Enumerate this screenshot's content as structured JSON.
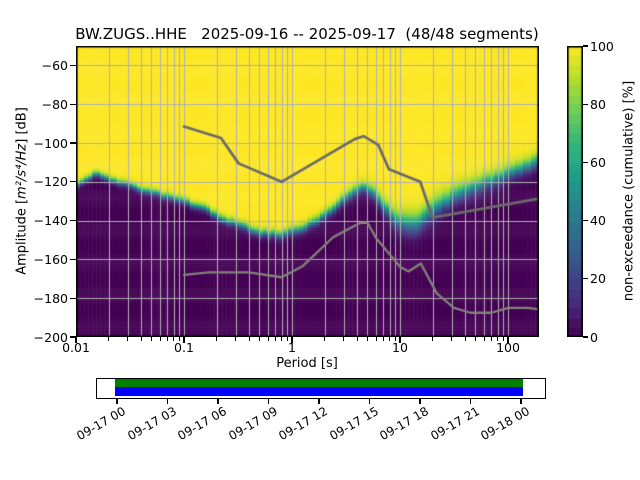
{
  "title": "BW.ZUGS..HHE   2025-09-16 -- 2025-09-17  (48/48 segments)",
  "axes": {
    "xlabel": "Period [s]",
    "ylabel_pre": "Amplitude [",
    "ylabel_math": "m²/s⁴/Hz",
    "ylabel_post": "] [dB]",
    "x_major_ticks": [
      {
        "value": 0.01,
        "label": "0.01"
      },
      {
        "value": 0.1,
        "label": "0.1"
      },
      {
        "value": 1,
        "label": "1"
      },
      {
        "value": 10,
        "label": "10"
      },
      {
        "value": 100,
        "label": "100"
      }
    ],
    "y_ticks": [
      {
        "value": -60,
        "label": "−60"
      },
      {
        "value": -80,
        "label": "−80"
      },
      {
        "value": -100,
        "label": "−100"
      },
      {
        "value": -120,
        "label": "−120"
      },
      {
        "value": -140,
        "label": "−140"
      },
      {
        "value": -160,
        "label": "−160"
      },
      {
        "value": -180,
        "label": "−180"
      },
      {
        "value": -200,
        "label": "−200"
      }
    ]
  },
  "colorbar": {
    "label": "non-exceedance (cumulative) [%]",
    "min": 0,
    "max": 100,
    "steps": 30,
    "ticks": [
      {
        "value": 0,
        "label": "0"
      },
      {
        "value": 20,
        "label": "20"
      },
      {
        "value": 40,
        "label": "40"
      },
      {
        "value": 60,
        "label": "60"
      },
      {
        "value": 80,
        "label": "80"
      },
      {
        "value": 100,
        "label": "100"
      }
    ]
  },
  "timeline": {
    "tick_labels": [
      "09-17 00",
      "09-17 03",
      "09-17 06",
      "09-17 09",
      "09-17 12",
      "09-17 15",
      "09-17 18",
      "09-17 21",
      "09-18 00"
    ],
    "segments_color": "#008000",
    "coverage_color": "#0000ff",
    "extent_frac": [
      0.0434,
      0.951
    ]
  },
  "chart_data": {
    "type": "heatmap",
    "title": "BW.ZUGS..HHE   2025-09-16 -- 2025-09-17  (48/48 segments)",
    "xlabel": "Period [s]",
    "ylabel": "Amplitude [m²/s⁴/Hz] [dB]",
    "x_scale": "log",
    "xlim": [
      0.01,
      193
    ],
    "ylim": [
      -200,
      -50
    ],
    "grid": true,
    "grid_color": "#b0b0b0",
    "color_axis": {
      "label": "non-exceedance (cumulative) [%]",
      "range": [
        0,
        100
      ],
      "colormap": "viridis"
    },
    "colormap_anchors": [
      "#440154",
      "#482878",
      "#3e4989",
      "#31688e",
      "#26828e",
      "#1f9e89",
      "#35b779",
      "#6ece58",
      "#b5de2b",
      "#fde725"
    ],
    "period_bins_per_decade": 26.575,
    "db_bin_width": 1,
    "cumulative_boundary_db_by_period": [
      [
        0.01,
        -121.5
      ],
      [
        0.0135,
        -118
      ],
      [
        0.0155,
        -114.8
      ],
      [
        0.019,
        -117.5
      ],
      [
        0.024,
        -120
      ],
      [
        0.032,
        -122
      ],
      [
        0.05,
        -125.5
      ],
      [
        0.07,
        -127.3
      ],
      [
        0.1,
        -130
      ],
      [
        0.15,
        -133.3
      ],
      [
        0.23,
        -139
      ],
      [
        0.33,
        -142
      ],
      [
        0.5,
        -146
      ],
      [
        0.75,
        -147.2
      ],
      [
        1.0,
        -145.5
      ],
      [
        1.3,
        -143.5
      ],
      [
        1.8,
        -139
      ],
      [
        2.4,
        -134.5
      ],
      [
        3.2,
        -127.5
      ],
      [
        4.0,
        -123.8
      ],
      [
        5.0,
        -122.7
      ],
      [
        6.0,
        -127
      ],
      [
        7.0,
        -132
      ],
      [
        8.5,
        -138.5
      ],
      [
        10.5,
        -140.8
      ],
      [
        14,
        -141.2
      ],
      [
        17,
        -138
      ],
      [
        20,
        -134
      ],
      [
        30,
        -128
      ],
      [
        45,
        -123.5
      ],
      [
        65,
        -119.8
      ],
      [
        90,
        -117
      ],
      [
        120,
        -114
      ],
      [
        160,
        -111
      ],
      [
        193,
        -109
      ]
    ],
    "transition_width_db": [
      [
        0.01,
        4
      ],
      [
        0.1,
        4.5
      ],
      [
        0.3,
        5
      ],
      [
        1,
        5.5
      ],
      [
        3,
        6.5
      ],
      [
        5,
        7
      ],
      [
        8,
        10
      ],
      [
        12,
        14
      ],
      [
        20,
        13
      ],
      [
        40,
        11
      ],
      [
        100,
        10
      ],
      [
        193,
        9
      ]
    ],
    "noise_models": {
      "description": "Peterson NHNM / NLNM (acceleration dB)",
      "color_high": "#6a6a6a",
      "color_low": "#82827a",
      "high": [
        [
          0.1,
          -91.5
        ],
        [
          0.22,
          -97.4
        ],
        [
          0.32,
          -110.5
        ],
        [
          0.8,
          -120.0
        ],
        [
          3.8,
          -98.0
        ],
        [
          4.6,
          -96.5
        ],
        [
          6.3,
          -101.0
        ],
        [
          7.9,
          -113.5
        ],
        [
          15.4,
          -120.0
        ],
        [
          20.0,
          -138.5
        ],
        [
          354.8,
          -126.0
        ]
      ],
      "low": [
        [
          0.1,
          -168.0
        ],
        [
          0.17,
          -166.7
        ],
        [
          0.4,
          -166.7
        ],
        [
          0.8,
          -169.2
        ],
        [
          1.24,
          -163.7
        ],
        [
          2.4,
          -148.6
        ],
        [
          4.3,
          -141.1
        ],
        [
          5.0,
          -141.1
        ],
        [
          6.0,
          -149.0
        ],
        [
          10.0,
          -163.8
        ],
        [
          12.0,
          -166.2
        ],
        [
          15.6,
          -162.1
        ],
        [
          21.9,
          -177.5
        ],
        [
          31.6,
          -185.0
        ],
        [
          45.0,
          -187.5
        ],
        [
          70.0,
          -187.5
        ],
        [
          101.0,
          -185.0
        ],
        [
          154.0,
          -185.0
        ],
        [
          328.0,
          -187.5
        ]
      ]
    }
  }
}
